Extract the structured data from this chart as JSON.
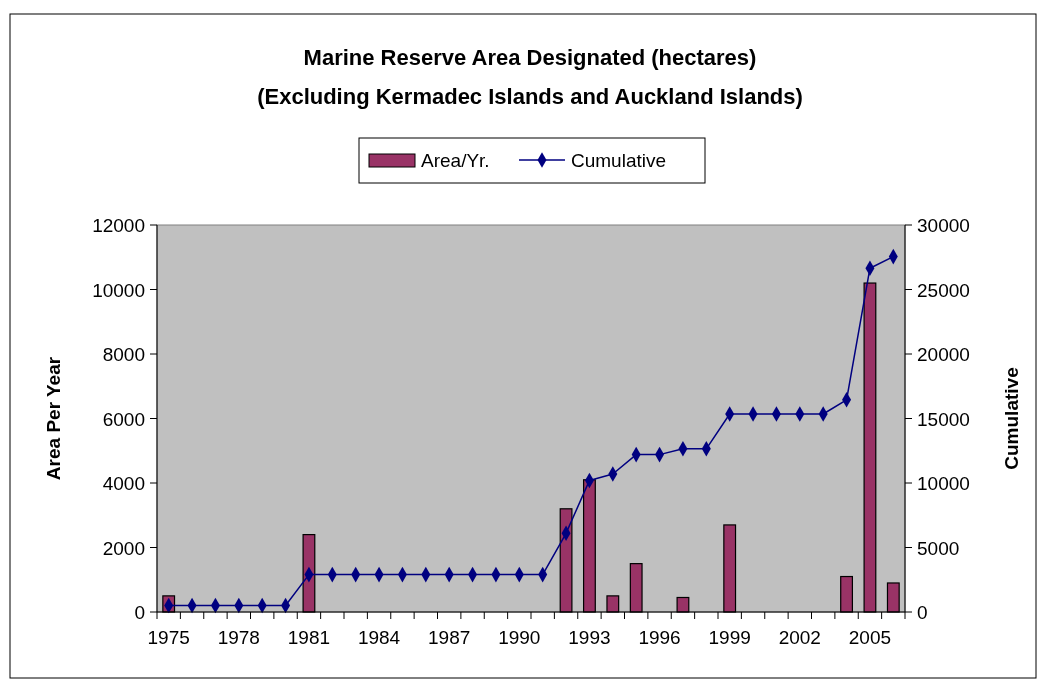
{
  "chart_data": {
    "type": "bar",
    "title": "Marine Reserve Area Designated (hectares)",
    "subtitle": "(Excluding Kermadec Islands and Auckland Islands)",
    "ylabel": "Area Per Year",
    "y2label": "Cumulative",
    "categories": [
      "1975",
      null,
      null,
      "1978",
      null,
      null,
      "1981",
      null,
      null,
      "1984",
      null,
      null,
      "1987",
      null,
      null,
      "1990",
      null,
      null,
      "1993",
      null,
      null,
      "1996",
      null,
      null,
      "1999",
      null,
      null,
      "2002",
      null,
      null,
      "2005",
      null
    ],
    "series": [
      {
        "name": "Area/Yr.",
        "color": "#993366",
        "values": [
          500,
          0,
          0,
          0,
          0,
          0,
          2400,
          0,
          0,
          0,
          0,
          0,
          0,
          0,
          0,
          0,
          0,
          3200,
          4100,
          500,
          1500,
          0,
          450,
          0,
          2700,
          0,
          0,
          0,
          0,
          1100,
          10200,
          900
        ]
      },
      {
        "name": "Cumulative",
        "type": "line",
        "axis": "y2",
        "color": "#000080",
        "marker": "diamond",
        "values": [
          500,
          500,
          500,
          500,
          500,
          500,
          2900,
          2900,
          2900,
          2900,
          2900,
          2900,
          2900,
          2900,
          2900,
          2900,
          2900,
          6100,
          10200,
          10700,
          12200,
          12200,
          12650,
          12650,
          15350,
          15350,
          15350,
          15350,
          15350,
          16450,
          26650,
          27550
        ]
      }
    ],
    "ylim": [
      0,
      12000
    ],
    "yticks": [
      0,
      2000,
      4000,
      6000,
      8000,
      10000,
      12000
    ],
    "y2lim": [
      0,
      30000
    ],
    "y2ticks": [
      0,
      5000,
      10000,
      15000,
      20000,
      25000,
      30000
    ],
    "legend": "top",
    "grid": false
  }
}
